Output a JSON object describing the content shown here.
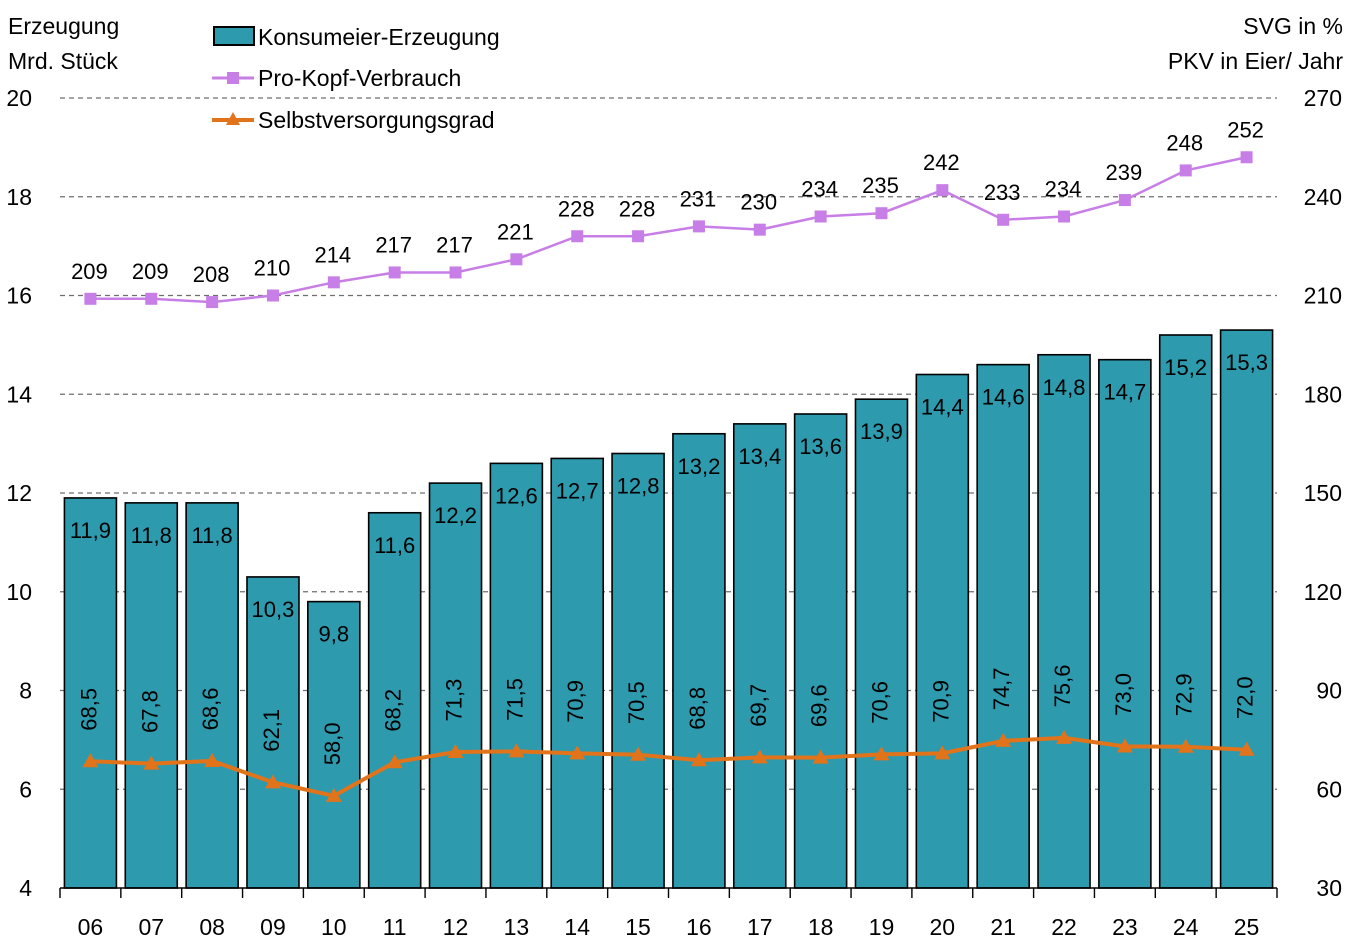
{
  "chart_data": {
    "type": "bar",
    "left_axis_label_line1": "Erzeugung",
    "left_axis_label_line2": "Mrd. Stück",
    "right_axis_label_line1": "SVG in %",
    "right_axis_label_line2": "PKV in Eier/ Jahr",
    "categories": [
      "06",
      "07",
      "08",
      "09",
      "10",
      "11",
      "12",
      "13",
      "14",
      "15",
      "16",
      "17",
      "18",
      "19",
      "20",
      "21",
      "22",
      "23",
      "24",
      "25"
    ],
    "y_left_range": [
      4,
      20
    ],
    "y_left_ticks": [
      "4",
      "6",
      "8",
      "10",
      "12",
      "14",
      "16",
      "18",
      "20"
    ],
    "y_right_range": [
      30,
      270
    ],
    "y_right_ticks": [
      "30",
      "60",
      "90",
      "120",
      "150",
      "180",
      "210",
      "240",
      "270"
    ],
    "gridlines": "dashed above 15",
    "legend_position": "top-left",
    "colors": {
      "bar": "#2e9aae",
      "pkv": "#c77ee6",
      "svg": "#e1731b"
    },
    "series": [
      {
        "name": "Konsumeier-Erzeugung",
        "axis": "left",
        "type": "bar",
        "values": [
          11.9,
          11.8,
          11.8,
          10.3,
          9.8,
          11.6,
          12.2,
          12.6,
          12.7,
          12.8,
          13.2,
          13.4,
          13.6,
          13.9,
          14.4,
          14.6,
          14.8,
          14.7,
          15.2,
          15.3
        ],
        "labels": [
          "11,9",
          "11,8",
          "11,8",
          "10,3",
          "9,8",
          "11,6",
          "12,2",
          "12,6",
          "12,7",
          "12,8",
          "13,2",
          "13,4",
          "13,6",
          "13,9",
          "14,4",
          "14,6",
          "14,8",
          "14,7",
          "15,2",
          "15,3"
        ]
      },
      {
        "name": "Pro-Kopf-Verbrauch",
        "axis": "right",
        "type": "line",
        "marker": "square",
        "values": [
          209,
          209,
          208,
          210,
          214,
          217,
          217,
          221,
          228,
          228,
          231,
          230,
          234,
          235,
          242,
          233,
          234,
          239,
          248,
          252
        ],
        "labels": [
          "209",
          "209",
          "208",
          "210",
          "214",
          "217",
          "217",
          "221",
          "228",
          "228",
          "231",
          "230",
          "234",
          "235",
          "242",
          "233",
          "234",
          "239",
          "248",
          "252"
        ]
      },
      {
        "name": "Selbstversorgungsgrad",
        "axis": "right",
        "type": "line",
        "marker": "triangle",
        "values": [
          68.5,
          67.8,
          68.6,
          62.1,
          58.0,
          68.2,
          71.3,
          71.5,
          70.9,
          70.5,
          68.8,
          69.7,
          69.6,
          70.6,
          70.9,
          74.7,
          75.6,
          73.0,
          72.9,
          72.0
        ],
        "labels": [
          "68,5",
          "67,8",
          "68,6",
          "62,1",
          "58,0",
          "68,2",
          "71,3",
          "71,5",
          "70,9",
          "70,5",
          "68,8",
          "69,7",
          "69,6",
          "70,6",
          "70,9",
          "74,7",
          "75,6",
          "73,0",
          "72,9",
          "72,0"
        ]
      }
    ]
  }
}
